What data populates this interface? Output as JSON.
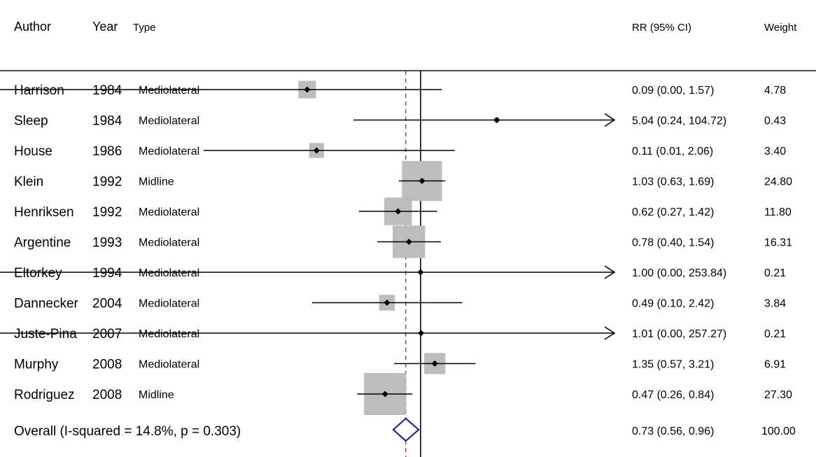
{
  "chart_data": {
    "type": "forest",
    "headers": {
      "author": "Author",
      "year": "Year",
      "type": "Type",
      "rr": "RR (95% CI)",
      "weight": "Weight"
    },
    "x_scale": "log",
    "null_value": 1,
    "overall_line_value": 0.73,
    "studies": [
      {
        "author": "Harrison",
        "year": "1984",
        "type": "Mediolateral",
        "rr": 0.09,
        "lo": 0.0,
        "hi": 1.57,
        "ci_text": "0.09 (0.00, 1.57)",
        "weight": "4.78"
      },
      {
        "author": "Sleep",
        "year": "1984",
        "type": "Mediolateral",
        "rr": 5.04,
        "lo": 0.24,
        "hi": 104.72,
        "ci_text": "5.04 (0.24, 104.72)",
        "weight": "0.43"
      },
      {
        "author": "House",
        "year": "1986",
        "type": "Mediolateral",
        "rr": 0.11,
        "lo": 0.01,
        "hi": 2.06,
        "ci_text": "0.11 (0.01, 2.06)",
        "weight": "3.40"
      },
      {
        "author": "Klein",
        "year": "1992",
        "type": "Midline",
        "rr": 1.03,
        "lo": 0.63,
        "hi": 1.69,
        "ci_text": "1.03 (0.63, 1.69)",
        "weight": "24.80"
      },
      {
        "author": "Henriksen",
        "year": "1992",
        "type": "Mediolateral",
        "rr": 0.62,
        "lo": 0.27,
        "hi": 1.42,
        "ci_text": "0.62 (0.27, 1.42)",
        "weight": "11.80"
      },
      {
        "author": "Argentine",
        "year": "1993",
        "type": "Mediolateral",
        "rr": 0.78,
        "lo": 0.4,
        "hi": 1.54,
        "ci_text": "0.78 (0.40, 1.54)",
        "weight": "16.31"
      },
      {
        "author": "Eltorkey",
        "year": "1994",
        "type": "Mediolateral",
        "rr": 1.0,
        "lo": 0.0,
        "hi": 253.84,
        "ci_text": "1.00 (0.00, 253.84)",
        "weight": "0.21"
      },
      {
        "author": "Dannecker",
        "year": "2004",
        "type": "Mediolateral",
        "rr": 0.49,
        "lo": 0.1,
        "hi": 2.42,
        "ci_text": "0.49 (0.10, 2.42)",
        "weight": "3.84"
      },
      {
        "author": "Juste-Pina",
        "year": "2007",
        "type": "Mediolateral",
        "rr": 1.01,
        "lo": 0.0,
        "hi": 257.27,
        "ci_text": "1.01 (0.00, 257.27)",
        "weight": "0.21"
      },
      {
        "author": "Murphy",
        "year": "2008",
        "type": "Mediolateral",
        "rr": 1.35,
        "lo": 0.57,
        "hi": 3.21,
        "ci_text": "1.35 (0.57, 3.21)",
        "weight": "6.91"
      },
      {
        "author": "Rodriguez",
        "year": "2008",
        "type": "Midline",
        "rr": 0.47,
        "lo": 0.26,
        "hi": 0.84,
        "ci_text": "0.47 (0.26, 0.84)",
        "weight": "27.30"
      }
    ],
    "overall": {
      "label": "Overall  (I-squared = 14.8%, p = 0.303)",
      "rr": 0.73,
      "lo": 0.56,
      "hi": 0.96,
      "ci_text": "0.73 (0.56, 0.96)",
      "weight": "100.00"
    },
    "colors": {
      "box": "#bdbdbd",
      "line": "#000000",
      "overall_line": "#8b2d3b",
      "diamond": "#1a1a6e"
    }
  }
}
